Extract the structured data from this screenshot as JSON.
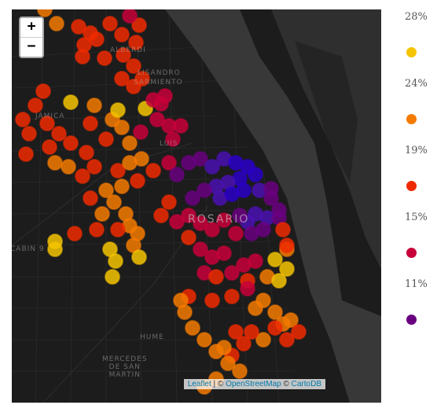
{
  "map": {
    "zoom_in_label": "+",
    "zoom_out_label": "−",
    "attribution": {
      "leaflet": "Leaflet",
      "sep1": " | © ",
      "osm": "OpenStreetMap",
      "sep2": " © ",
      "carto": "CartoDB"
    },
    "place_labels": {
      "alberdi": "ALBERDI",
      "lisandro": "LISANDRO",
      "sarmiento": "SARMIENTO",
      "jamica": "JAMICA",
      "luis": "LUIS",
      "rosario": "ROSARIO",
      "cabin": "CABIN 9",
      "hume": "HUME",
      "mercedes": "MERCEDES\nDE SAN\nMARTIN"
    }
  },
  "legend": {
    "items": [
      {
        "label": "28%",
        "color": "#f5c400"
      },
      {
        "label": "24%",
        "color": "#f57a00"
      },
      {
        "label": "19%",
        "color": "#f02a00"
      },
      {
        "label": "15%",
        "color": "#c8003a"
      },
      {
        "label": "11%",
        "color": "#6a0080"
      }
    ]
  },
  "colors": {
    "yellow": "#f5c400",
    "orange": "#f57a00",
    "red_orange": "#f02a00",
    "crimson": "#c8003a",
    "purple": "#6a0080",
    "blue": "#2a00c8",
    "violet": "#4a10b0",
    "land": "#1c1c1c",
    "water": "#3a3a3a"
  }
}
